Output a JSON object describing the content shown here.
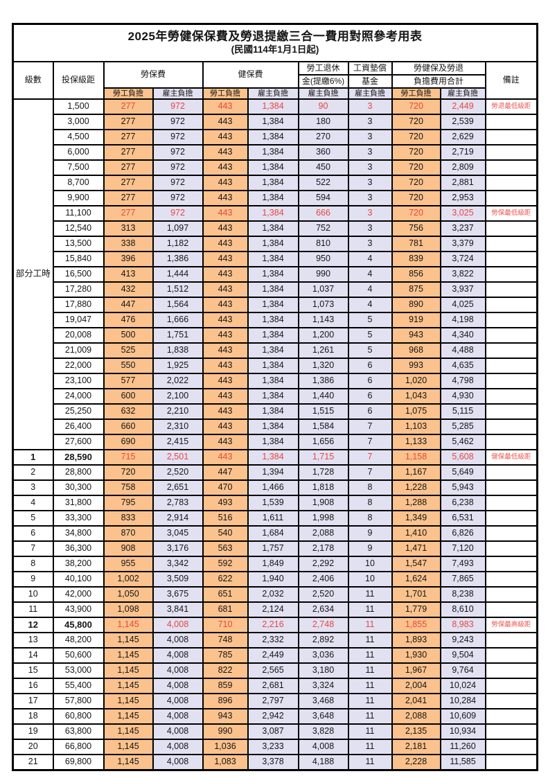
{
  "title": "2025年勞健保保費及勞退提繳三合一費用對照參考用表",
  "subtitle": "(民國114年1月1日起)",
  "colors": {
    "employee_bg": "#FBC28D",
    "employer_bg": "#E2E1F2",
    "highlight_red": "#E8463C",
    "border": "#000000"
  },
  "header": {
    "level": "級數",
    "bracket": "投保級距",
    "labor_insurance": "勞保費",
    "health_insurance": "健保費",
    "pension_line1": "勞工退休",
    "pension_line2": "金(提繳6%)",
    "wage_fund_line1": "工資墊償",
    "wage_fund_line2": "基金",
    "total_line1": "勞健保及勞退",
    "total_line2": "負擔費用合計",
    "remark": "備註",
    "employee": "勞工負擔",
    "employer": "雇主負擔"
  },
  "part_time": {
    "label": "部分工時"
  },
  "rows": [
    {
      "bracket": "1,500",
      "v": [
        "277",
        "972",
        "443",
        "1,384",
        "90",
        "3",
        "720",
        "2,449"
      ],
      "remark": "勞退最低級距",
      "red": true
    },
    {
      "bracket": "3,000",
      "v": [
        "277",
        "972",
        "443",
        "1,384",
        "180",
        "3",
        "720",
        "2,539"
      ]
    },
    {
      "bracket": "4,500",
      "v": [
        "277",
        "972",
        "443",
        "1,384",
        "270",
        "3",
        "720",
        "2,629"
      ]
    },
    {
      "bracket": "6,000",
      "v": [
        "277",
        "972",
        "443",
        "1,384",
        "360",
        "3",
        "720",
        "2,719"
      ]
    },
    {
      "bracket": "7,500",
      "v": [
        "277",
        "972",
        "443",
        "1,384",
        "450",
        "3",
        "720",
        "2,809"
      ]
    },
    {
      "bracket": "8,700",
      "v": [
        "277",
        "972",
        "443",
        "1,384",
        "522",
        "3",
        "720",
        "2,881"
      ]
    },
    {
      "bracket": "9,900",
      "v": [
        "277",
        "972",
        "443",
        "1,384",
        "594",
        "3",
        "720",
        "2,953"
      ]
    },
    {
      "bracket": "11,100",
      "v": [
        "277",
        "972",
        "443",
        "1,384",
        "666",
        "3",
        "720",
        "3,025"
      ],
      "remark": "勞保最低級距",
      "red": true
    },
    {
      "bracket": "12,540",
      "v": [
        "313",
        "1,097",
        "443",
        "1,384",
        "752",
        "3",
        "756",
        "3,237"
      ]
    },
    {
      "bracket": "13,500",
      "v": [
        "338",
        "1,182",
        "443",
        "1,384",
        "810",
        "3",
        "781",
        "3,379"
      ]
    },
    {
      "bracket": "15,840",
      "v": [
        "396",
        "1,386",
        "443",
        "1,384",
        "950",
        "4",
        "839",
        "3,724"
      ]
    },
    {
      "bracket": "16,500",
      "v": [
        "413",
        "1,444",
        "443",
        "1,384",
        "990",
        "4",
        "856",
        "3,822"
      ]
    },
    {
      "bracket": "17,280",
      "v": [
        "432",
        "1,512",
        "443",
        "1,384",
        "1,037",
        "4",
        "875",
        "3,937"
      ]
    },
    {
      "bracket": "17,880",
      "v": [
        "447",
        "1,564",
        "443",
        "1,384",
        "1,073",
        "4",
        "890",
        "4,025"
      ]
    },
    {
      "bracket": "19,047",
      "v": [
        "476",
        "1,666",
        "443",
        "1,384",
        "1,143",
        "5",
        "919",
        "4,198"
      ]
    },
    {
      "bracket": "20,008",
      "v": [
        "500",
        "1,751",
        "443",
        "1,384",
        "1,200",
        "5",
        "943",
        "4,340"
      ]
    },
    {
      "bracket": "21,009",
      "v": [
        "525",
        "1,838",
        "443",
        "1,384",
        "1,261",
        "5",
        "968",
        "4,488"
      ]
    },
    {
      "bracket": "22,000",
      "v": [
        "550",
        "1,925",
        "443",
        "1,384",
        "1,320",
        "6",
        "993",
        "4,635"
      ]
    },
    {
      "bracket": "23,100",
      "v": [
        "577",
        "2,022",
        "443",
        "1,384",
        "1,386",
        "6",
        "1,020",
        "4,798"
      ]
    },
    {
      "bracket": "24,000",
      "v": [
        "600",
        "2,100",
        "443",
        "1,384",
        "1,440",
        "6",
        "1,043",
        "4,930"
      ]
    },
    {
      "bracket": "25,250",
      "v": [
        "632",
        "2,210",
        "443",
        "1,384",
        "1,515",
        "6",
        "1,075",
        "5,115"
      ]
    },
    {
      "bracket": "26,400",
      "v": [
        "660",
        "2,310",
        "443",
        "1,384",
        "1,584",
        "7",
        "1,103",
        "5,285"
      ]
    },
    {
      "bracket": "27,600",
      "v": [
        "690",
        "2,415",
        "443",
        "1,384",
        "1,656",
        "7",
        "1,133",
        "5,462"
      ]
    },
    {
      "level": "1",
      "bracket": "28,590",
      "v": [
        "715",
        "2,501",
        "443",
        "1,384",
        "1,715",
        "7",
        "1,158",
        "5,608"
      ],
      "remark": "健保最低級距",
      "red": true,
      "bold": true
    },
    {
      "level": "2",
      "bracket": "28,800",
      "v": [
        "720",
        "2,520",
        "447",
        "1,394",
        "1,728",
        "7",
        "1,167",
        "5,649"
      ]
    },
    {
      "level": "3",
      "bracket": "30,300",
      "v": [
        "758",
        "2,651",
        "470",
        "1,466",
        "1,818",
        "8",
        "1,228",
        "5,943"
      ]
    },
    {
      "level": "4",
      "bracket": "31,800",
      "v": [
        "795",
        "2,783",
        "493",
        "1,539",
        "1,908",
        "8",
        "1,288",
        "6,238"
      ]
    },
    {
      "level": "5",
      "bracket": "33,300",
      "v": [
        "833",
        "2,914",
        "516",
        "1,611",
        "1,998",
        "8",
        "1,349",
        "6,531"
      ]
    },
    {
      "level": "6",
      "bracket": "34,800",
      "v": [
        "870",
        "3,045",
        "540",
        "1,684",
        "2,088",
        "9",
        "1,410",
        "6,826"
      ]
    },
    {
      "level": "7",
      "bracket": "36,300",
      "v": [
        "908",
        "3,176",
        "563",
        "1,757",
        "2,178",
        "9",
        "1,471",
        "7,120"
      ]
    },
    {
      "level": "8",
      "bracket": "38,200",
      "v": [
        "955",
        "3,342",
        "592",
        "1,849",
        "2,292",
        "10",
        "1,547",
        "7,493"
      ]
    },
    {
      "level": "9",
      "bracket": "40,100",
      "v": [
        "1,002",
        "3,509",
        "622",
        "1,940",
        "2,406",
        "10",
        "1,624",
        "7,865"
      ]
    },
    {
      "level": "10",
      "bracket": "42,000",
      "v": [
        "1,050",
        "3,675",
        "651",
        "2,032",
        "2,520",
        "11",
        "1,701",
        "8,238"
      ]
    },
    {
      "level": "11",
      "bracket": "43,900",
      "v": [
        "1,098",
        "3,841",
        "681",
        "2,124",
        "2,634",
        "11",
        "1,779",
        "8,610"
      ]
    },
    {
      "level": "12",
      "bracket": "45,800",
      "v": [
        "1,145",
        "4,008",
        "710",
        "2,216",
        "2,748",
        "11",
        "1,855",
        "8,983"
      ],
      "remark": "勞保最高級距",
      "red": true,
      "bold": true
    },
    {
      "level": "13",
      "bracket": "48,200",
      "v": [
        "1,145",
        "4,008",
        "748",
        "2,332",
        "2,892",
        "11",
        "1,893",
        "9,243"
      ]
    },
    {
      "level": "14",
      "bracket": "50,600",
      "v": [
        "1,145",
        "4,008",
        "785",
        "2,449",
        "3,036",
        "11",
        "1,930",
        "9,504"
      ]
    },
    {
      "level": "15",
      "bracket": "53,000",
      "v": [
        "1,145",
        "4,008",
        "822",
        "2,565",
        "3,180",
        "11",
        "1,967",
        "9,764"
      ]
    },
    {
      "level": "16",
      "bracket": "55,400",
      "v": [
        "1,145",
        "4,008",
        "859",
        "2,681",
        "3,324",
        "11",
        "2,004",
        "10,024"
      ]
    },
    {
      "level": "17",
      "bracket": "57,800",
      "v": [
        "1,145",
        "4,008",
        "896",
        "2,797",
        "3,468",
        "11",
        "2,041",
        "10,284"
      ]
    },
    {
      "level": "18",
      "bracket": "60,800",
      "v": [
        "1,145",
        "4,008",
        "943",
        "2,942",
        "3,648",
        "11",
        "2,088",
        "10,609"
      ]
    },
    {
      "level": "19",
      "bracket": "63,800",
      "v": [
        "1,145",
        "4,008",
        "990",
        "3,087",
        "3,828",
        "11",
        "2,135",
        "10,934"
      ]
    },
    {
      "level": "20",
      "bracket": "66,800",
      "v": [
        "1,145",
        "4,008",
        "1,036",
        "3,233",
        "4,008",
        "11",
        "2,181",
        "11,260"
      ]
    },
    {
      "level": "21",
      "bracket": "69,800",
      "v": [
        "1,145",
        "4,008",
        "1,083",
        "3,378",
        "4,188",
        "11",
        "2,228",
        "11,585"
      ]
    }
  ]
}
